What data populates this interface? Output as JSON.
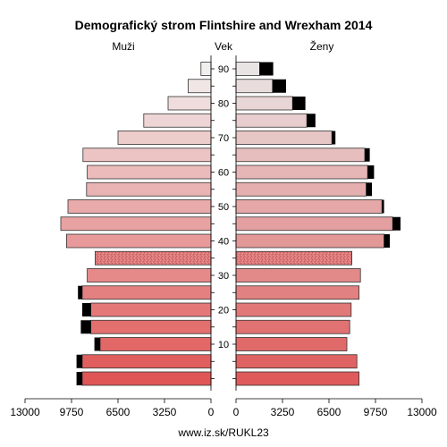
{
  "chart_data": {
    "type": "bar",
    "title": "Demografický strom Flintshire and Wrexham 2014",
    "left_label": "Muži",
    "center_label": "Vek",
    "right_label": "Ženy",
    "footer": "www.iz.sk/RUKL23",
    "x_ticks": [
      "13000",
      "9750",
      "6500",
      "3250",
      "0",
      "0",
      "3250",
      "6500",
      "9750",
      "13000"
    ],
    "x_max": 13000,
    "age_ticks": [
      "10",
      "20",
      "30",
      "40",
      "50",
      "60",
      "70",
      "80",
      "90"
    ],
    "colors": {
      "men_base": "#e05656",
      "men_top": "#f1eeee",
      "women_base": "#df5b5b",
      "women_top": "#e9e4e4",
      "excess": "#000000",
      "bar_border": "#333333"
    },
    "age_groups": [
      "0-4",
      "5-9",
      "10-14",
      "15-19",
      "20-24",
      "25-29",
      "30-34",
      "35-39",
      "40-44",
      "45-49",
      "50-54",
      "55-59",
      "60-64",
      "65-69",
      "70-74",
      "75-79",
      "80-84",
      "85-89",
      "90+"
    ],
    "men": [
      9000,
      9000,
      7750,
      8400,
      8400,
      9000,
      8650,
      8100,
      10100,
      10500,
      10000,
      8700,
      8650,
      8950,
      6500,
      4700,
      3000,
      1600,
      700
    ],
    "women": [
      8600,
      8450,
      7750,
      7950,
      8050,
      8600,
      8700,
      8100,
      10350,
      10950,
      10200,
      9100,
      9200,
      9000,
      6700,
      4950,
      3950,
      2550,
      1650
    ],
    "men_excess": [
      400,
      400,
      400,
      700,
      600,
      300,
      0,
      0,
      0,
      0,
      0,
      0,
      0,
      0,
      0,
      0,
      0,
      0,
      0
    ],
    "women_excess": [
      0,
      0,
      0,
      0,
      0,
      0,
      0,
      0,
      400,
      550,
      150,
      400,
      450,
      350,
      250,
      600,
      900,
      950,
      950
    ],
    "hatched_bar": "35-39"
  }
}
